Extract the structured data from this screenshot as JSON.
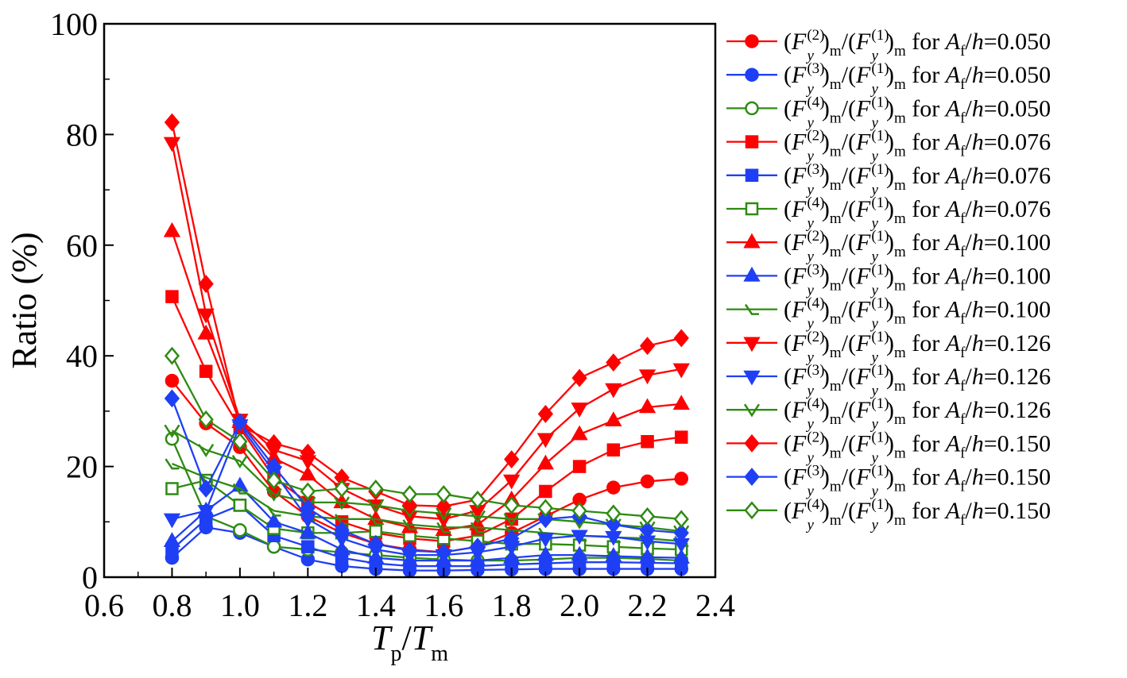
{
  "chart_data": {
    "type": "line",
    "title": "",
    "xlabel": {
      "base": "T",
      "sub": "p",
      "sep": "/",
      "base2": "T",
      "sub2": "m"
    },
    "ylabel": "Ratio (%)",
    "xlim": [
      0.6,
      2.4
    ],
    "ylim": [
      0,
      100
    ],
    "x_ticks": [
      "0.6",
      "0.8",
      "1.0",
      "1.2",
      "1.4",
      "1.6",
      "1.8",
      "2.0",
      "2.2",
      "2.4"
    ],
    "y_ticks": [
      "0",
      "20",
      "40",
      "60",
      "80",
      "100"
    ],
    "grid": false,
    "legend_position": "right, outside plot",
    "legend_template": {
      "F": "F",
      "y": "y",
      "m": "m",
      "open": "(",
      "close": ")",
      "slash": "/",
      "for": "for",
      "A": "A",
      "f": "f",
      "h": "h"
    },
    "colors": {
      "red": "#ff0000",
      "blue": "#1f3ff5",
      "green": "#2e8b12"
    },
    "x": [
      0.8,
      0.9,
      1.0,
      1.1,
      1.2,
      1.3,
      1.4,
      1.5,
      1.6,
      1.7,
      1.8,
      1.9,
      2.0,
      2.1,
      2.2,
      2.3
    ],
    "series": [
      {
        "name": "(F_y^(2))_m/(F_y^(1))_m for A_f/h=0.050",
        "order": "(2)",
        "ratio": "=0.050",
        "color": "red",
        "marker": "circle",
        "fill": true,
        "values": [
          35.5,
          27.8,
          23.5,
          15.5,
          11.0,
          8.0,
          6.0,
          5.0,
          4.5,
          5.5,
          8.0,
          11.0,
          14.0,
          16.2,
          17.3,
          17.8
        ]
      },
      {
        "name": "(F_y^(3))_m/(F_y^(1))_m for A_f/h=0.050",
        "order": "(3)",
        "ratio": "=0.050",
        "color": "blue",
        "marker": "circle",
        "fill": true,
        "values": [
          3.5,
          9.0,
          8.0,
          5.5,
          3.2,
          2.0,
          1.5,
          1.2,
          1.2,
          1.3,
          1.4,
          1.5,
          1.5,
          1.5,
          1.5,
          1.5
        ]
      },
      {
        "name": "(F_y^(4))_m/(F_y^(1))_m for A_f/h=0.050",
        "order": "(4)",
        "ratio": "=0.050",
        "color": "green",
        "marker": "circle",
        "fill": false,
        "values": [
          25.0,
          11.0,
          8.5,
          5.5,
          5.0,
          4.5,
          4.0,
          3.5,
          3.2,
          3.0,
          3.0,
          3.2,
          3.5,
          3.5,
          3.3,
          3.0
        ]
      },
      {
        "name": "(F_y^(2))_m/(F_y^(1))_m for A_f/h=0.076",
        "order": "(2)",
        "ratio": "=0.076",
        "color": "red",
        "marker": "square",
        "fill": true,
        "values": [
          50.7,
          37.2,
          27.0,
          18.0,
          13.5,
          10.0,
          8.0,
          7.0,
          6.5,
          7.5,
          10.5,
          15.5,
          20.0,
          23.0,
          24.5,
          25.3
        ]
      },
      {
        "name": "(F_y^(3))_m/(F_y^(1))_m for A_f/h=0.076",
        "order": "(3)",
        "ratio": "=0.076",
        "color": "blue",
        "marker": "square",
        "fill": true,
        "values": [
          5.0,
          10.5,
          13.0,
          7.5,
          5.5,
          3.5,
          2.5,
          2.0,
          2.0,
          2.0,
          2.3,
          2.5,
          2.7,
          2.7,
          2.6,
          2.5
        ]
      },
      {
        "name": "(F_y^(4))_m/(F_y^(1))_m for A_f/h=0.076",
        "order": "(4)",
        "ratio": "=0.076",
        "color": "green",
        "marker": "square",
        "fill": false,
        "values": [
          16.0,
          17.5,
          13.0,
          8.8,
          8.0,
          8.0,
          8.3,
          7.5,
          7.0,
          6.5,
          6.0,
          6.0,
          5.8,
          5.5,
          5.2,
          5.0
        ]
      },
      {
        "name": "(F_y^(2))_m/(F_y^(1))_m for A_f/h=0.100",
        "order": "(2)",
        "ratio": "=0.100",
        "color": "red",
        "marker": "triangle-up",
        "fill": true,
        "values": [
          62.5,
          44.0,
          28.0,
          21.5,
          18.5,
          13.5,
          10.5,
          9.0,
          8.5,
          9.5,
          14.0,
          20.5,
          25.8,
          28.3,
          30.7,
          31.3
        ]
      },
      {
        "name": "(F_y^(3))_m/(F_y^(1))_m for A_f/h=0.100",
        "order": "(3)",
        "ratio": "=0.100",
        "color": "blue",
        "marker": "triangle-up",
        "fill": true,
        "values": [
          6.5,
          12.0,
          16.5,
          10.0,
          8.0,
          5.0,
          3.5,
          3.0,
          3.0,
          3.0,
          3.5,
          4.0,
          4.0,
          3.8,
          3.6,
          3.5
        ]
      },
      {
        "name": "(F_y^(4))_m/(F_y^(1))_m for A_f/h=0.100",
        "order": "(4)",
        "ratio": "=0.100",
        "color": "green",
        "marker": "triangle-open",
        "fill": false,
        "values": [
          20.5,
          18.0,
          16.0,
          12.0,
          11.0,
          10.5,
          10.5,
          9.5,
          9.0,
          9.0,
          8.5,
          8.0,
          7.5,
          7.2,
          7.0,
          6.5
        ]
      },
      {
        "name": "(F_y^(2))_m/(F_y^(1))_m for A_f/h=0.126",
        "order": "(2)",
        "ratio": "=0.126",
        "color": "red",
        "marker": "triangle-down",
        "fill": true,
        "values": [
          78.5,
          47.5,
          28.5,
          23.0,
          21.0,
          16.0,
          13.0,
          11.0,
          10.5,
          12.0,
          17.5,
          25.0,
          30.5,
          34.0,
          36.5,
          37.6
        ]
      },
      {
        "name": "(F_y^(3))_m/(F_y^(1))_m for A_f/h=0.126",
        "order": "(3)",
        "ratio": "=0.126",
        "color": "blue",
        "marker": "triangle-down",
        "fill": true,
        "values": [
          10.5,
          12.0,
          27.5,
          19.0,
          10.5,
          7.0,
          5.0,
          4.0,
          4.0,
          4.5,
          5.5,
          7.0,
          7.5,
          7.3,
          6.5,
          6.0
        ]
      },
      {
        "name": "(F_y^(4))_m/(F_y^(1))_m for A_f/h=0.126",
        "order": "(4)",
        "ratio": "=0.126",
        "color": "green",
        "marker": "chevron-down",
        "fill": false,
        "values": [
          26.5,
          23.0,
          21.0,
          15.0,
          13.5,
          13.5,
          13.0,
          12.0,
          11.5,
          11.0,
          10.5,
          10.5,
          10.0,
          9.5,
          9.0,
          8.3
        ]
      },
      {
        "name": "(F_y^(2))_m/(F_y^(1))_m for A_f/h=0.150",
        "order": "(2)",
        "ratio": "=0.150",
        "color": "red",
        "marker": "diamond",
        "fill": true,
        "values": [
          82.2,
          53.0,
          27.5,
          24.2,
          22.5,
          18.0,
          15.5,
          13.0,
          12.8,
          14.0,
          21.3,
          29.5,
          36.0,
          38.8,
          41.8,
          43.2
        ]
      },
      {
        "name": "(F_y^(3))_m/(F_y^(1))_m for A_f/h=0.150",
        "order": "(3)",
        "ratio": "=0.150",
        "color": "blue",
        "marker": "diamond",
        "fill": true,
        "values": [
          32.3,
          16.0,
          28.0,
          20.0,
          12.5,
          8.5,
          6.0,
          4.8,
          4.5,
          5.5,
          7.0,
          10.5,
          11.0,
          9.5,
          8.5,
          8.0
        ]
      },
      {
        "name": "(F_y^(4))_m/(F_y^(1))_m for A_f/h=0.150",
        "order": "(4)",
        "ratio": "=0.150",
        "color": "green",
        "marker": "diamond",
        "fill": false,
        "values": [
          40.0,
          28.5,
          24.5,
          17.5,
          15.5,
          16.0,
          16.0,
          15.0,
          15.0,
          14.0,
          13.0,
          12.5,
          12.0,
          11.5,
          11.0,
          10.5
        ]
      }
    ]
  }
}
